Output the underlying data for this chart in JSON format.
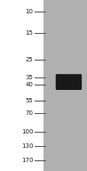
{
  "mw_labels": [
    "170",
    "130",
    "100",
    "70",
    "55",
    "40",
    "35",
    "25",
    "15",
    "10"
  ],
  "mw_values": [
    170,
    130,
    100,
    70,
    55,
    40,
    35,
    25,
    15,
    10
  ],
  "band_color": "#111111",
  "gel_color": "#b0b0b0",
  "background_color": "#ffffff",
  "label_fontsize": 5.0,
  "label_color": "#222222",
  "line_color": "#555555",
  "line_width": 0.7,
  "fig_width": 0.98,
  "fig_height": 1.92,
  "dpi": 100
}
